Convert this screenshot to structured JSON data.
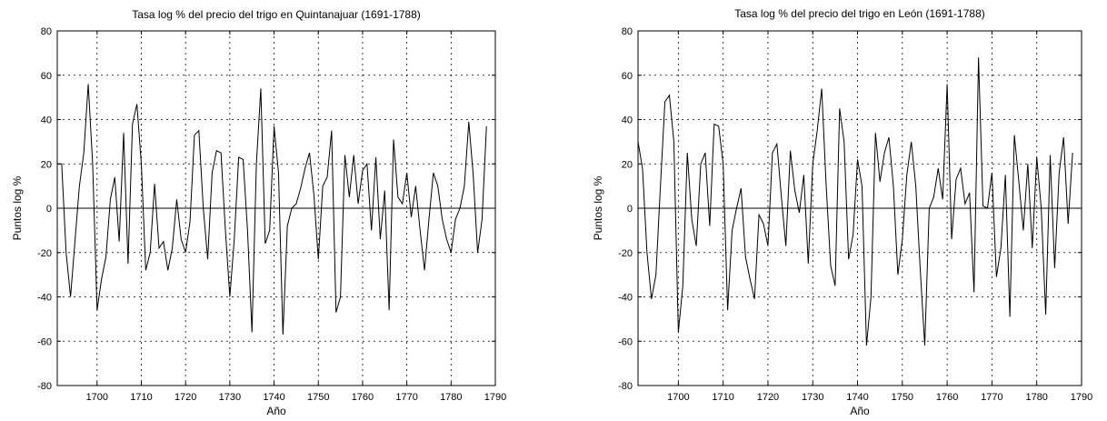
{
  "chart_data": [
    {
      "type": "line",
      "title": "Tasa log % del precio del trigo en  Quintanajuar (1691-1788)",
      "xlabel": "Año",
      "ylabel": "Puntos log %",
      "xlim": [
        1691,
        1790
      ],
      "ylim": [
        -80,
        80
      ],
      "xticks": [
        1700,
        1710,
        1720,
        1730,
        1740,
        1750,
        1760,
        1770,
        1780,
        1790
      ],
      "yticks": [
        80,
        60,
        40,
        20,
        0,
        -20,
        -40,
        -60,
        -80
      ],
      "grid": true,
      "line_color": "#000000",
      "series": [
        {
          "x": [
            1691,
            1692,
            1693,
            1694,
            1695,
            1696,
            1697,
            1698,
            1699,
            1700,
            1701,
            1702,
            1703,
            1704,
            1705,
            1706,
            1707,
            1708,
            1709,
            1710,
            1711,
            1712,
            1713,
            1714,
            1715,
            1716,
            1717,
            1718,
            1719,
            1720,
            1721,
            1722,
            1723,
            1724,
            1725,
            1726,
            1727,
            1728,
            1729,
            1730,
            1731,
            1732,
            1733,
            1734,
            1735,
            1736,
            1737,
            1738,
            1739,
            1740,
            1741,
            1742,
            1743,
            1744,
            1745,
            1746,
            1747,
            1748,
            1749,
            1750,
            1751,
            1752,
            1753,
            1754,
            1755,
            1756,
            1757,
            1758,
            1759,
            1760,
            1761,
            1762,
            1763,
            1764,
            1765,
            1766,
            1767,
            1768,
            1769,
            1770,
            1771,
            1772,
            1773,
            1774,
            1775,
            1776,
            1777,
            1778,
            1779,
            1780,
            1781,
            1782,
            1783,
            1784,
            1785,
            1786,
            1787,
            1788
          ],
          "y": [
            20,
            20,
            -20,
            -40,
            -15,
            10,
            25,
            56,
            20,
            -46,
            -32,
            -22,
            4,
            14,
            -15,
            34,
            -25,
            38,
            47,
            20,
            -28,
            -20,
            11,
            -18,
            -15,
            -28,
            -18,
            4,
            -14,
            -20,
            -6,
            33,
            35,
            0,
            -23,
            16,
            26,
            25,
            -10,
            -40,
            -14,
            23,
            22,
            -10,
            -56,
            20,
            54,
            -16,
            -10,
            37,
            16,
            -57,
            -8,
            0,
            2,
            9,
            18,
            25,
            6,
            -23,
            10,
            14,
            35,
            -47,
            -40,
            24,
            5,
            24,
            2,
            17,
            20,
            -10,
            23,
            -14,
            8,
            -46,
            31,
            5,
            2,
            16,
            -4,
            10,
            -10,
            -28,
            -5,
            16,
            10,
            -5,
            -14,
            -20,
            -5,
            0,
            10,
            39,
            15,
            -20,
            -5,
            37
          ]
        }
      ]
    },
    {
      "type": "line",
      "title": "Tasa log % del precio del trigo en  León (1691-1788)",
      "xlabel": "Año",
      "ylabel": "Puntos log %",
      "xlim": [
        1691,
        1790
      ],
      "ylim": [
        -80,
        80
      ],
      "xticks": [
        1700,
        1710,
        1720,
        1730,
        1740,
        1750,
        1760,
        1770,
        1780,
        1790
      ],
      "yticks": [
        80,
        60,
        40,
        20,
        0,
        -20,
        -40,
        -60,
        -80
      ],
      "grid": true,
      "line_color": "#000000",
      "series": [
        {
          "x": [
            1691,
            1692,
            1693,
            1694,
            1695,
            1696,
            1697,
            1698,
            1699,
            1700,
            1701,
            1702,
            1703,
            1704,
            1705,
            1706,
            1707,
            1708,
            1709,
            1710,
            1711,
            1712,
            1713,
            1714,
            1715,
            1716,
            1717,
            1718,
            1719,
            1720,
            1721,
            1722,
            1723,
            1724,
            1725,
            1726,
            1727,
            1728,
            1729,
            1730,
            1731,
            1732,
            1733,
            1734,
            1735,
            1736,
            1737,
            1738,
            1739,
            1740,
            1741,
            1742,
            1743,
            1744,
            1745,
            1746,
            1747,
            1748,
            1749,
            1750,
            1751,
            1752,
            1753,
            1754,
            1755,
            1756,
            1757,
            1758,
            1759,
            1760,
            1761,
            1762,
            1763,
            1764,
            1765,
            1766,
            1767,
            1768,
            1769,
            1770,
            1771,
            1772,
            1773,
            1774,
            1775,
            1776,
            1777,
            1778,
            1779,
            1780,
            1781,
            1782,
            1783,
            1784,
            1785,
            1786,
            1787,
            1788
          ],
          "y": [
            30,
            18,
            -20,
            -41,
            -30,
            10,
            48,
            51,
            30,
            -56,
            -35,
            25,
            -5,
            -17,
            20,
            25,
            -8,
            38,
            37,
            20,
            -46,
            -10,
            0,
            9,
            -22,
            -32,
            -41,
            -3,
            -7,
            -17,
            25,
            29,
            5,
            -17,
            26,
            8,
            -2,
            15,
            -25,
            20,
            35,
            54,
            10,
            -26,
            -35,
            45,
            30,
            -23,
            -12,
            22,
            10,
            -62,
            -40,
            34,
            12,
            25,
            32,
            10,
            -30,
            -14,
            15,
            30,
            10,
            -28,
            -62,
            0,
            5,
            18,
            4,
            56,
            -14,
            13,
            18,
            2,
            7,
            -38,
            68,
            1,
            0,
            16,
            -31,
            -18,
            15,
            -49,
            33,
            12,
            -10,
            20,
            -18,
            23,
            0,
            -48,
            24,
            -27,
            16,
            32,
            -7,
            25
          ]
        }
      ]
    }
  ]
}
